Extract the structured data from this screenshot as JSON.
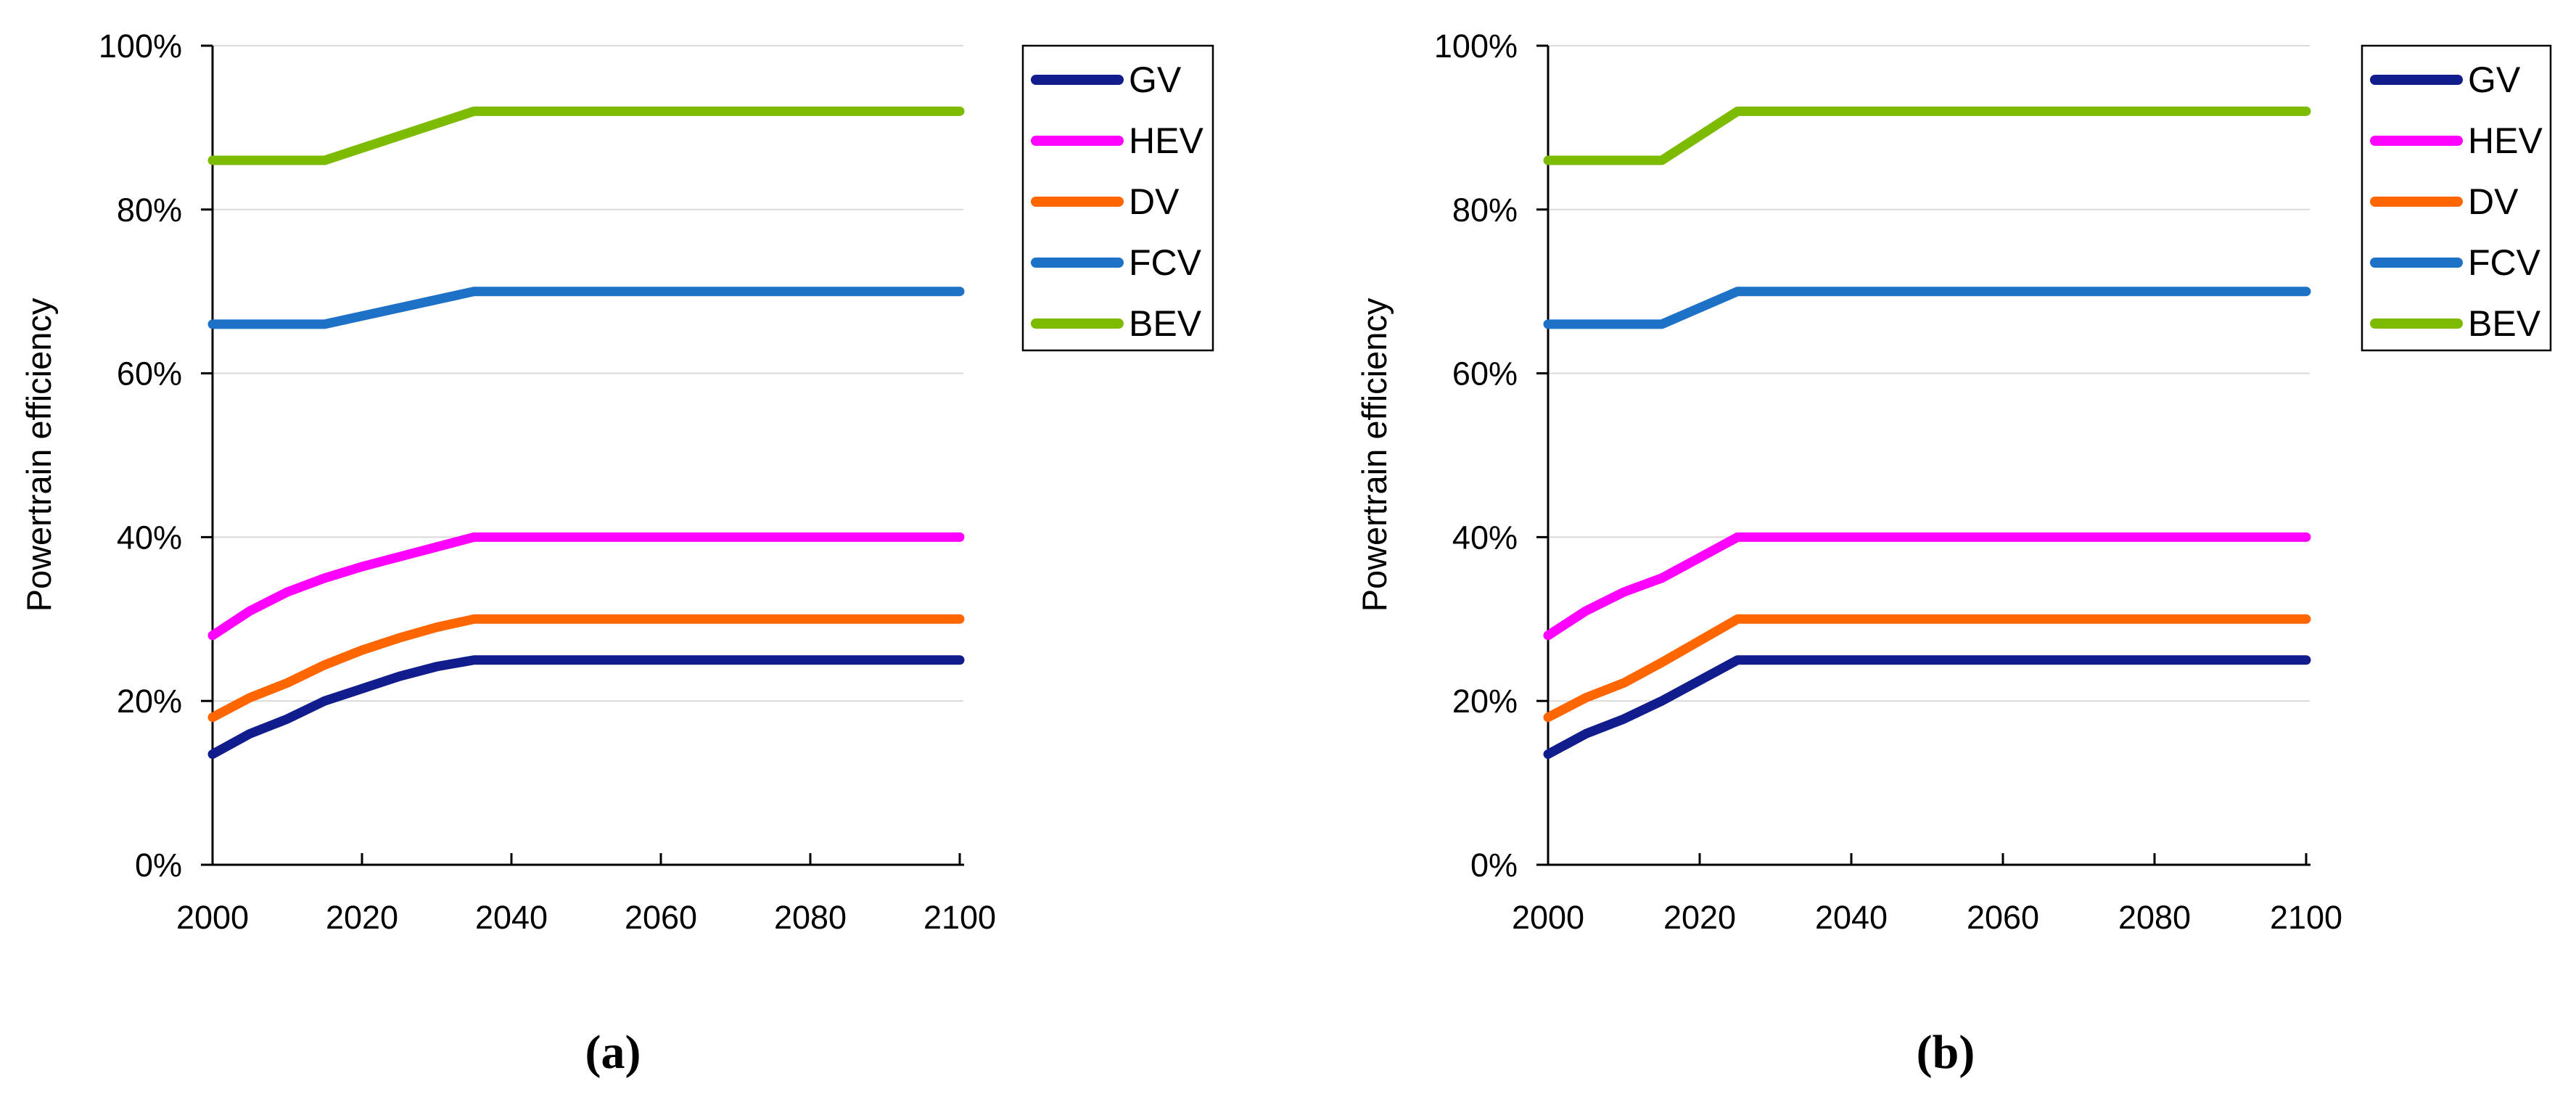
{
  "figure_title": "",
  "chart_data": [
    {
      "id": "a",
      "type": "line",
      "caption": "(a)",
      "ylabel": "Powertrain efficiency",
      "xlabel": "",
      "xlim": [
        2000,
        2100
      ],
      "ylim_percent": [
        0,
        100
      ],
      "grid": "horizontal-light-gray",
      "legend_position": "outside-right-top",
      "x_ticks": [
        2000,
        2020,
        2040,
        2060,
        2080,
        2100
      ],
      "y_ticks": {
        "values": [
          0,
          20,
          40,
          60,
          80,
          100
        ],
        "labels": [
          "0%",
          "20%",
          "40%",
          "60%",
          "80%",
          "100%"
        ]
      },
      "series": [
        {
          "name": "GV",
          "color": "#111C8D",
          "points": [
            [
              2000,
              13.5
            ],
            [
              2005,
              16
            ],
            [
              2010,
              17.8
            ],
            [
              2015,
              20
            ],
            [
              2020,
              21.5
            ],
            [
              2025,
              23
            ],
            [
              2030,
              24.2
            ],
            [
              2035,
              25
            ],
            [
              2100,
              25
            ]
          ]
        },
        {
          "name": "HEV",
          "color": "#FF00FF",
          "points": [
            [
              2000,
              28
            ],
            [
              2005,
              31
            ],
            [
              2010,
              33.3
            ],
            [
              2015,
              35
            ],
            [
              2020,
              36.4
            ],
            [
              2025,
              37.6
            ],
            [
              2030,
              38.8
            ],
            [
              2035,
              40
            ],
            [
              2100,
              40
            ]
          ]
        },
        {
          "name": "DV",
          "color": "#FF6600",
          "points": [
            [
              2000,
              18
            ],
            [
              2005,
              20.4
            ],
            [
              2010,
              22.2
            ],
            [
              2015,
              24.4
            ],
            [
              2020,
              26.2
            ],
            [
              2025,
              27.7
            ],
            [
              2030,
              29
            ],
            [
              2035,
              30
            ],
            [
              2100,
              30
            ]
          ]
        },
        {
          "name": "FCV",
          "color": "#1D71C7",
          "points": [
            [
              2000,
              66
            ],
            [
              2015,
              66
            ],
            [
              2035,
              70
            ],
            [
              2100,
              70
            ]
          ]
        },
        {
          "name": "BEV",
          "color": "#7DBB00",
          "points": [
            [
              2000,
              86
            ],
            [
              2015,
              86
            ],
            [
              2035,
              92
            ],
            [
              2100,
              92
            ]
          ]
        }
      ]
    },
    {
      "id": "b",
      "type": "line",
      "caption": "(b)",
      "ylabel": "Powertrain efficiency",
      "xlabel": "",
      "xlim": [
        2000,
        2100
      ],
      "ylim_percent": [
        0,
        100
      ],
      "grid": "horizontal-light-gray",
      "legend_position": "outside-right-top",
      "x_ticks": [
        2000,
        2020,
        2040,
        2060,
        2080,
        2100
      ],
      "y_ticks": {
        "values": [
          0,
          20,
          40,
          60,
          80,
          100
        ],
        "labels": [
          "0%",
          "20%",
          "40%",
          "60%",
          "80%",
          "100%"
        ]
      },
      "series": [
        {
          "name": "GV",
          "color": "#111C8D",
          "points": [
            [
              2000,
              13.5
            ],
            [
              2005,
              16
            ],
            [
              2010,
              17.8
            ],
            [
              2015,
              20
            ],
            [
              2025,
              25
            ],
            [
              2100,
              25
            ]
          ]
        },
        {
          "name": "HEV",
          "color": "#FF00FF",
          "points": [
            [
              2000,
              28
            ],
            [
              2005,
              31
            ],
            [
              2010,
              33.3
            ],
            [
              2015,
              35
            ],
            [
              2025,
              40
            ],
            [
              2100,
              40
            ]
          ]
        },
        {
          "name": "DV",
          "color": "#FF6600",
          "points": [
            [
              2000,
              18
            ],
            [
              2005,
              20.4
            ],
            [
              2010,
              22.2
            ],
            [
              2015,
              24.7
            ],
            [
              2025,
              30
            ],
            [
              2100,
              30
            ]
          ]
        },
        {
          "name": "FCV",
          "color": "#1D71C7",
          "points": [
            [
              2000,
              66
            ],
            [
              2015,
              66
            ],
            [
              2025,
              70
            ],
            [
              2100,
              70
            ]
          ]
        },
        {
          "name": "BEV",
          "color": "#7DBB00",
          "points": [
            [
              2000,
              86
            ],
            [
              2015,
              86
            ],
            [
              2025,
              92
            ],
            [
              2100,
              92
            ]
          ]
        }
      ]
    }
  ],
  "style_colors": {
    "gridline": "#D9D9D9",
    "axis": "#000000",
    "legend_border": "#000000",
    "background": "#FFFFFF"
  }
}
